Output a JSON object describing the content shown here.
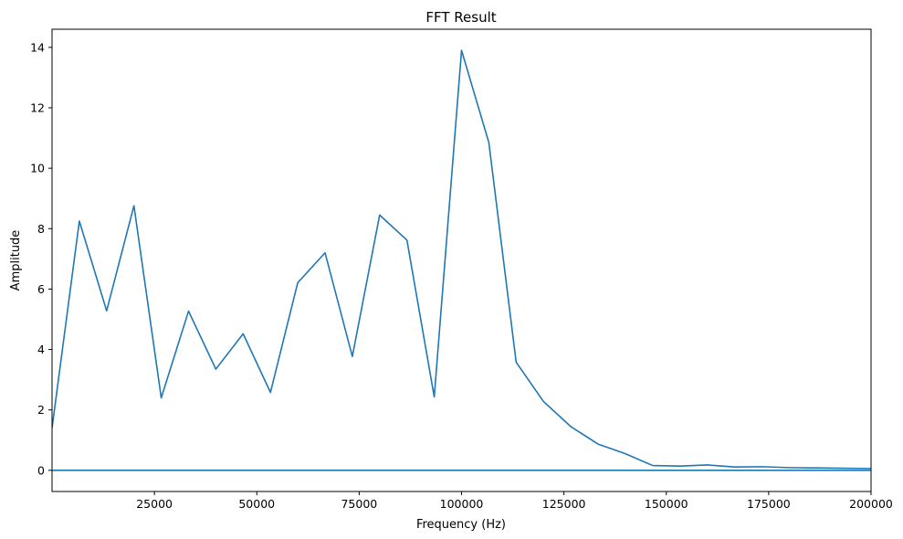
{
  "chart_data": {
    "type": "line",
    "title": "FFT Result",
    "xlabel": "Frequency (Hz)",
    "ylabel": "Amplitude",
    "xlim": [
      0,
      200000
    ],
    "ylim": [
      -0.7,
      14.6
    ],
    "grid": false,
    "colors": {
      "line": "#1f77b4"
    },
    "x_ticks": [
      {
        "value": 25000,
        "label": "25000"
      },
      {
        "value": 50000,
        "label": "50000"
      },
      {
        "value": 75000,
        "label": "75000"
      },
      {
        "value": 100000,
        "label": "100000"
      },
      {
        "value": 125000,
        "label": "125000"
      },
      {
        "value": 150000,
        "label": "150000"
      },
      {
        "value": 175000,
        "label": "175000"
      },
      {
        "value": 200000,
        "label": "200000"
      }
    ],
    "y_ticks": [
      {
        "value": 0,
        "label": "0"
      },
      {
        "value": 2,
        "label": "2"
      },
      {
        "value": 4,
        "label": "4"
      },
      {
        "value": 6,
        "label": "6"
      },
      {
        "value": 8,
        "label": "8"
      },
      {
        "value": 10,
        "label": "10"
      },
      {
        "value": 12,
        "label": "12"
      },
      {
        "value": 14,
        "label": "14"
      }
    ],
    "series": [
      {
        "x": [
          0,
          6667,
          13333,
          20000,
          26667,
          33333,
          40000,
          46667,
          53333,
          60000,
          66667,
          73333,
          80000,
          86667,
          93333,
          100000,
          106667,
          113333,
          120000,
          126667,
          133333,
          140000,
          146667,
          153333,
          160000,
          166667,
          173333,
          180000,
          186667,
          193333,
          200000
        ],
        "y": [
          1.4,
          8.25,
          5.28,
          8.76,
          2.4,
          5.27,
          3.35,
          4.52,
          2.58,
          6.21,
          7.2,
          3.77,
          8.45,
          7.62,
          2.43,
          13.9,
          10.85,
          3.58,
          2.28,
          1.45,
          0.87,
          0.55,
          0.16,
          0.14,
          0.18,
          0.11,
          0.12,
          0.09,
          0.08,
          0.07,
          0.06
        ]
      },
      {
        "x": [
          0,
          200000
        ],
        "y": [
          0,
          0
        ]
      }
    ]
  }
}
